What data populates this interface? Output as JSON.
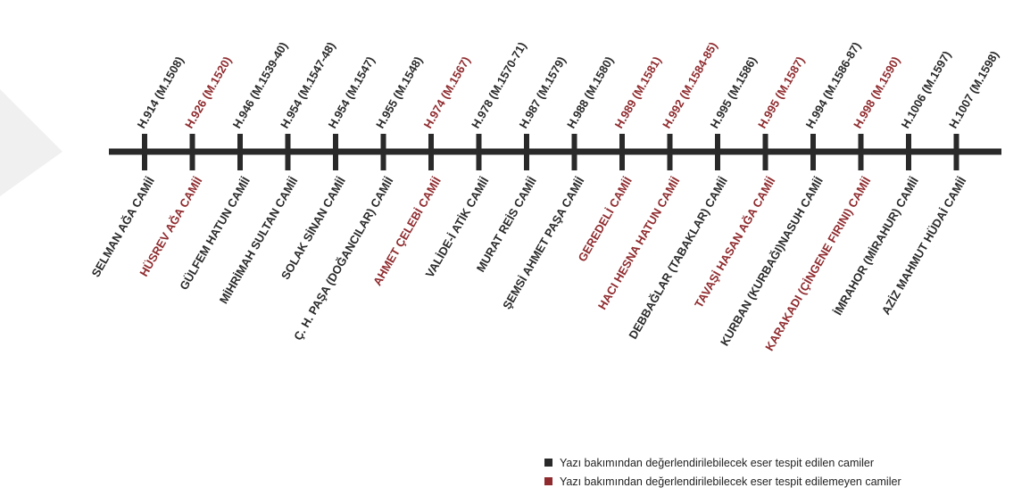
{
  "colors": {
    "dark": "#2a2a2a",
    "red": "#8f2b2e",
    "watermark": "#f0f0f0"
  },
  "timeline": {
    "entries": [
      {
        "date": "H.914 (M.1508)",
        "name": "SELMAN AĞA CAMİİ",
        "status": "dark"
      },
      {
        "date": "H.926 (M.1520)",
        "name": "HÜSREV AĞA CAMİİ",
        "status": "red"
      },
      {
        "date": "H.946 (M.1539-40)",
        "name": "GÜLFEM HATUN CAMİİ",
        "status": "dark"
      },
      {
        "date": "H.954 (M.1547-48)",
        "name": "MİHRİMAH SULTAN CAMİİ",
        "status": "dark"
      },
      {
        "date": "H.954 (M.1547)",
        "name": "SOLAK SİNAN CAMİİ",
        "status": "dark"
      },
      {
        "date": "H.955 (M.1548)",
        "name": "Ç. H. PAŞA (DOĞANCILAR) CAMİİ",
        "status": "dark"
      },
      {
        "date": "H.974 (M.1567)",
        "name": "AHMET ÇELEBİ CAMİİ",
        "status": "red"
      },
      {
        "date": "H.978 (M.1570-71)",
        "name": "VALİDE-İ ATİK CAMİİ",
        "status": "dark"
      },
      {
        "date": "H.987 (M.1579)",
        "name": "MURAT REİS CAMİİ",
        "status": "dark"
      },
      {
        "date": "H.988 (M.1580)",
        "name": "ŞEMSİ AHMET PAŞA CAMİİ",
        "status": "dark"
      },
      {
        "date": "H.989 (M.1581)",
        "name": "GEREDELİ CAMİİ",
        "status": "red"
      },
      {
        "date": "H.992 (M.1584-85)",
        "name": "HACI HESNA HATUN CAMİİ",
        "status": "red"
      },
      {
        "date": "H.995 (M.1586)",
        "name": "DEBBAĞLAR (TABAKLAR) CAMİİ",
        "status": "dark"
      },
      {
        "date": "H.995 (M.1587)",
        "name": "TAVAŞİ HASAN AĞA CAMİİ",
        "status": "red"
      },
      {
        "date": "H.994 (M.1586-87)",
        "name": "KURBAN (KURBAĞI)NASUH CAMİİ",
        "status": "dark"
      },
      {
        "date": "H.998 (M.1590)",
        "name": "KARAKADI (ÇİNGENE FIRINI) CAMİİ",
        "status": "red"
      },
      {
        "date": "H.1006 (M.1597)",
        "name": "İMRAHOR (MİRAHUR) CAMİİ",
        "status": "dark"
      },
      {
        "date": "H.1007 (M.1598)",
        "name": "AZİZ MAHMUT HÜDAİ CAMİİ",
        "status": "dark"
      }
    ]
  },
  "legend": {
    "items": [
      {
        "label": "Yazı bakımından değerlendirilebilecek eser tespit edilen camiler",
        "status": "dark"
      },
      {
        "label": "Yazı bakımından değerlendirilebilecek eser tespit edilemeyen camiler",
        "status": "red"
      }
    ]
  }
}
